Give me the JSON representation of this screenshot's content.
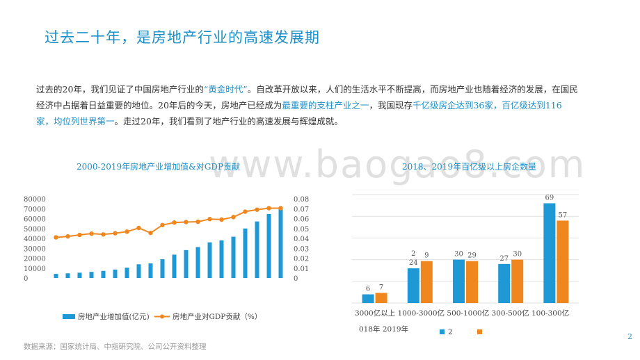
{
  "title": "过去二十年，是房地产行业的高速发展期",
  "paragraph": {
    "p1": "过去的20年，我们见证了中国房地产行业的",
    "h1": "“黄金时代”",
    "p2": "。自改革开放以来，人们的生活水平不断提高，而房地产业也随着经济的发展，在国民经济中占据着日益重要的地位。20年后的今天，房地产已经成为",
    "h2": "最重要的支柱产业之一",
    "p3": "，我国现存",
    "h3": "千亿级房企达到36家，百亿级达到116家，均位列世界第一",
    "p4": "。走过20年，我们看到了地产行业的高速发展与辉煌成就。"
  },
  "watermark": "www.baogao8.com",
  "source": "数据来源：国家统计局、中指研究院、公司公开资料整理",
  "page_number": "2",
  "colors": {
    "accent": "#1a8fc7",
    "orange": "#f0871e",
    "bar_blue": "#1f98d6"
  },
  "chart_data": [
    {
      "type": "bar",
      "title": "2000-2019年房地产业增加值&对GDP贡献",
      "y_ticks": [
        "80000",
        "70000",
        "60000",
        "50000",
        "40000",
        "30000",
        "20000",
        "10000",
        "0"
      ],
      "y2_ticks": [
        "0.08",
        "0.07",
        "0.06",
        "0.05",
        "0.04",
        "0.03",
        "0.02",
        "0.01",
        "0"
      ],
      "ylim": [
        0,
        80000
      ],
      "y2lim": [
        0,
        0.08
      ],
      "series": [
        {
          "name": "房地产业增加值(亿元)",
          "type": "bar",
          "color": "#1f98d6",
          "values": [
            4149,
            4715,
            5347,
            6172,
            7174,
            8516,
            10370,
            13810,
            14739,
            18966,
            23569,
            28167,
            31248,
            35988,
            38000,
            41701,
            49969,
            57086,
            64623,
            69631
          ]
        },
        {
          "name": "房地产业对GDP贡献（%）",
          "type": "line",
          "color": "#f0871e",
          "values": [
            0.041,
            0.042,
            0.0435,
            0.0448,
            0.044,
            0.0452,
            0.0468,
            0.0505,
            0.0455,
            0.0535,
            0.056,
            0.0565,
            0.0568,
            0.0595,
            0.059,
            0.0615,
            0.067,
            0.069,
            0.0705,
            0.0705
          ]
        }
      ]
    },
    {
      "type": "bar",
      "title": "2018、2019年百亿级以上房企数量",
      "categories": [
        "3000亿以上",
        "1000-3000亿",
        "500-1000亿",
        "300-500亿",
        "100-300亿"
      ],
      "axis_label": "018年 2019年",
      "series": [
        {
          "name": "2",
          "color": "#1f98d6",
          "values": [
            6,
            24,
            30,
            27,
            69
          ]
        },
        {
          "name": "",
          "color": "#f0871e",
          "values": [
            7,
            29,
            29,
            30,
            57
          ]
        }
      ],
      "data_labels": [
        [
          "6",
          "7"
        ],
        [
          "2\n24",
          "9"
        ],
        [
          "30",
          "29"
        ],
        [
          "27",
          "30"
        ],
        [
          "69",
          "57"
        ]
      ],
      "ylim": [
        0,
        75
      ]
    }
  ]
}
